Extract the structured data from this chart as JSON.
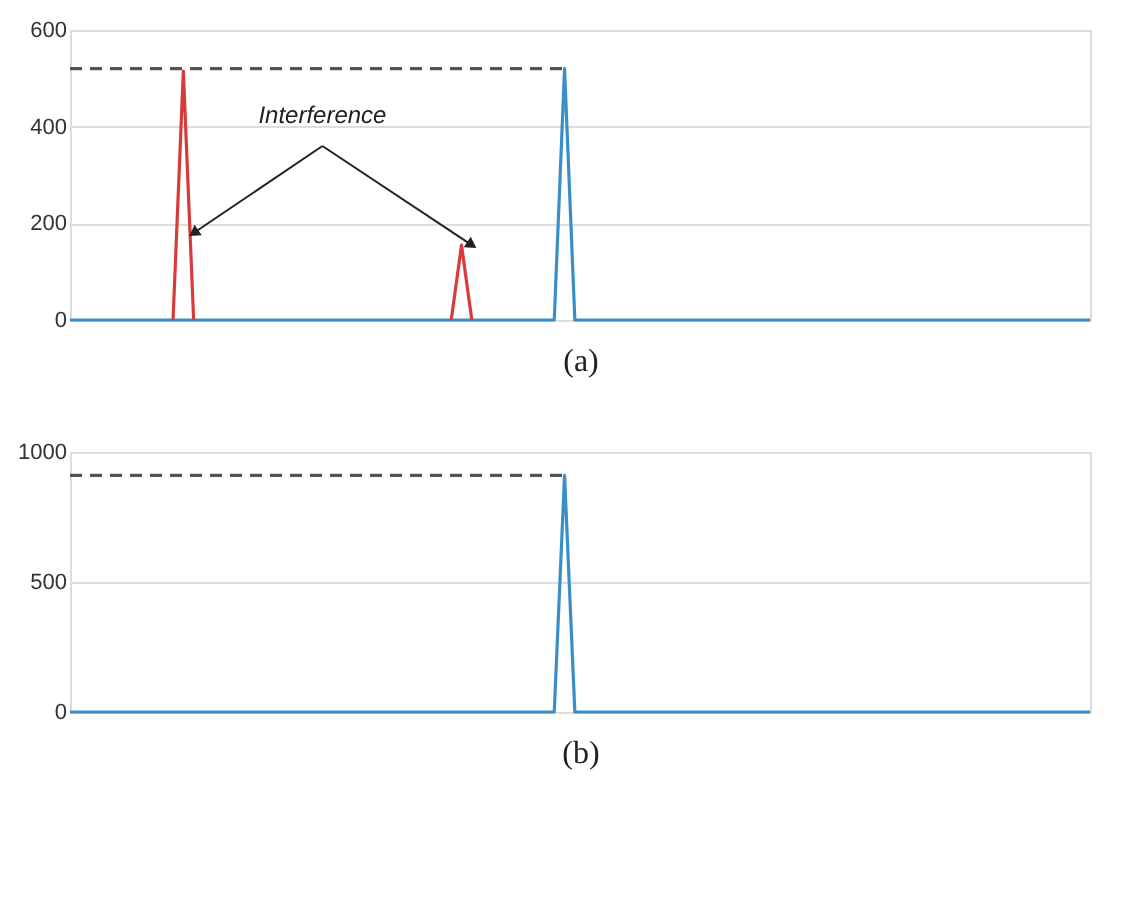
{
  "chart_data": [
    {
      "type": "line",
      "xlabel": "(a)",
      "annotations": [
        "Interference"
      ],
      "ylim": [
        0,
        600
      ],
      "yticks": [
        0,
        200,
        400,
        600
      ],
      "grid": "y",
      "tick_labels": "y",
      "marker": "none",
      "categories": [
        null,
        null,
        null,
        null,
        null,
        null,
        null,
        null,
        null,
        null,
        null,
        null,
        null,
        null,
        null,
        null,
        null,
        null,
        null,
        null,
        null,
        null,
        null,
        null,
        null,
        null,
        null,
        null,
        null,
        null,
        null,
        null,
        null,
        null,
        null,
        null,
        null,
        null,
        null,
        null,
        null,
        null,
        null,
        null,
        null,
        null,
        null,
        null,
        null,
        null,
        null,
        null,
        null,
        null,
        null,
        null,
        null,
        null,
        null,
        null,
        null,
        null,
        null,
        null,
        null,
        null,
        null,
        null,
        null,
        null,
        null,
        null,
        null,
        null,
        null,
        null,
        null,
        null,
        null,
        null,
        null,
        null,
        null,
        null,
        null,
        null,
        null,
        null,
        null,
        null,
        null,
        null,
        null,
        null,
        null,
        null,
        null,
        null,
        null,
        null
      ],
      "series": [
        {
          "color": "#3a8fc8",
          "line_style": "solid",
          "values": [
            0,
            0,
            0,
            0,
            0,
            0,
            0,
            0,
            0,
            0,
            0,
            0,
            0,
            0,
            0,
            0,
            0,
            0,
            0,
            0,
            0,
            0,
            0,
            0,
            0,
            0,
            0,
            0,
            0,
            0,
            0,
            0,
            0,
            0,
            0,
            0,
            0,
            0,
            0,
            0,
            0,
            0,
            0,
            0,
            0,
            0,
            0,
            0,
            520,
            0,
            0,
            0,
            0,
            0,
            0,
            0,
            0,
            0,
            0,
            0,
            0,
            0,
            0,
            0,
            0,
            0,
            0,
            0,
            0,
            0,
            0,
            0,
            0,
            0,
            0,
            0,
            0,
            0,
            0,
            0,
            0,
            0,
            0,
            0,
            0,
            0,
            0,
            0,
            0,
            0,
            0,
            0,
            0,
            0,
            0,
            0,
            0,
            0,
            0,
            0
          ]
        },
        {
          "color": "#d93b3b",
          "line_style": "solid",
          "values": [
            null,
            null,
            null,
            null,
            null,
            null,
            null,
            null,
            null,
            null,
            0,
            515,
            0,
            null,
            null,
            null,
            null,
            null,
            null,
            null,
            null,
            null,
            null,
            null,
            null,
            null,
            null,
            null,
            null,
            null,
            null,
            null,
            null,
            null,
            null,
            null,
            null,
            0,
            155,
            0,
            null,
            null,
            null,
            null,
            null,
            null,
            null,
            null,
            null,
            null,
            null,
            null,
            null,
            null,
            null,
            null,
            null,
            null,
            null,
            null,
            null,
            null,
            null,
            null,
            null,
            null,
            null,
            null,
            null,
            null,
            null,
            null,
            null,
            null,
            null,
            null,
            null,
            null,
            null,
            null,
            null,
            null,
            null,
            null,
            null,
            null,
            null,
            null,
            null,
            null,
            null,
            null,
            null,
            null,
            null,
            null,
            null,
            null,
            null,
            null
          ]
        },
        {
          "color": "#555555",
          "line_style": "dashed",
          "values": [
            520,
            520,
            520,
            520,
            520,
            520,
            520,
            520,
            520,
            520,
            520,
            520,
            520,
            520,
            520,
            520,
            520,
            520,
            520,
            520,
            520,
            520,
            520,
            520,
            520,
            520,
            520,
            520,
            520,
            520,
            520,
            520,
            520,
            520,
            520,
            520,
            520,
            520,
            520,
            520,
            520,
            520,
            520,
            520,
            520,
            520,
            520,
            520,
            520,
            null,
            null,
            null,
            null,
            null,
            null,
            null,
            null,
            null,
            null,
            null,
            null,
            null,
            null,
            null,
            null,
            null,
            null,
            null,
            null,
            null,
            null,
            null,
            null,
            null,
            null,
            null,
            null,
            null,
            null,
            null,
            null,
            null,
            null,
            null,
            null,
            null,
            null,
            null,
            null,
            null,
            null,
            null,
            null,
            null,
            null,
            null,
            null,
            null,
            null,
            null
          ]
        }
      ]
    },
    {
      "type": "line",
      "xlabel": "(b)",
      "ylim": [
        0,
        1000
      ],
      "yticks": [
        0,
        500,
        1000
      ],
      "grid": "y",
      "tick_labels": "y",
      "marker": "none",
      "categories": [
        null,
        null,
        null,
        null,
        null,
        null,
        null,
        null,
        null,
        null,
        null,
        null,
        null,
        null,
        null,
        null,
        null,
        null,
        null,
        null,
        null,
        null,
        null,
        null,
        null,
        null,
        null,
        null,
        null,
        null,
        null,
        null,
        null,
        null,
        null,
        null,
        null,
        null,
        null,
        null,
        null,
        null,
        null,
        null,
        null,
        null,
        null,
        null,
        null,
        null,
        null,
        null,
        null,
        null,
        null,
        null,
        null,
        null,
        null,
        null,
        null,
        null,
        null,
        null,
        null,
        null,
        null,
        null,
        null,
        null,
        null,
        null,
        null,
        null,
        null,
        null,
        null,
        null,
        null,
        null,
        null,
        null,
        null,
        null,
        null,
        null,
        null,
        null,
        null,
        null,
        null,
        null,
        null,
        null,
        null,
        null,
        null,
        null,
        null,
        null
      ],
      "series": [
        {
          "color": "#3a8fc8",
          "line_style": "solid",
          "values": [
            0,
            0,
            0,
            0,
            0,
            0,
            0,
            0,
            0,
            0,
            0,
            0,
            0,
            0,
            0,
            0,
            0,
            0,
            0,
            0,
            0,
            0,
            0,
            0,
            0,
            0,
            0,
            0,
            0,
            0,
            0,
            0,
            0,
            0,
            0,
            0,
            0,
            0,
            0,
            0,
            0,
            0,
            0,
            0,
            0,
            0,
            0,
            0,
            910,
            0,
            0,
            0,
            0,
            0,
            0,
            0,
            0,
            0,
            0,
            0,
            0,
            0,
            0,
            0,
            0,
            0,
            0,
            0,
            0,
            0,
            0,
            0,
            0,
            0,
            0,
            0,
            0,
            0,
            0,
            0,
            0,
            0,
            0,
            0,
            0,
            0,
            0,
            0,
            0,
            0,
            0,
            0,
            0,
            0,
            0,
            0,
            0,
            0,
            0,
            0
          ]
        },
        {
          "color": "#555555",
          "line_style": "dashed",
          "values": [
            910,
            910,
            910,
            910,
            910,
            910,
            910,
            910,
            910,
            910,
            910,
            910,
            910,
            910,
            910,
            910,
            910,
            910,
            910,
            910,
            910,
            910,
            910,
            910,
            910,
            910,
            910,
            910,
            910,
            910,
            910,
            910,
            910,
            910,
            910,
            910,
            910,
            910,
            910,
            910,
            910,
            910,
            910,
            910,
            910,
            910,
            910,
            910,
            910,
            null,
            null,
            null,
            null,
            null,
            null,
            null,
            null,
            null,
            null,
            null,
            null,
            null,
            null,
            null,
            null,
            null,
            null,
            null,
            null,
            null,
            null,
            null,
            null,
            null,
            null,
            null,
            null,
            null,
            null,
            null,
            null,
            null,
            null,
            null,
            null,
            null,
            null,
            null,
            null,
            null,
            null,
            null,
            null,
            null,
            null,
            null,
            null,
            null,
            null,
            null
          ]
        }
      ]
    }
  ]
}
